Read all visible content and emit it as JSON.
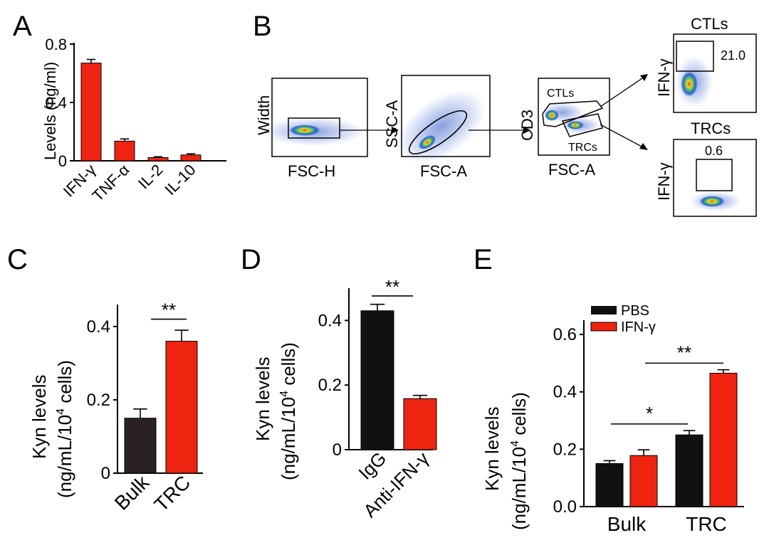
{
  "colors": {
    "red": "#ee2411",
    "black": "#111111",
    "dark": "#2a2222"
  },
  "chart_data": [
    {
      "panel": "A",
      "type": "bar",
      "ylabel": "Levels (ng/ml)",
      "categories": [
        "IFN-γ",
        "TNF-α",
        "IL-2",
        "IL-10"
      ],
      "values": [
        0.67,
        0.135,
        0.022,
        0.04
      ],
      "errors": [
        0.025,
        0.015,
        0.006,
        0.008
      ],
      "yticks": [
        "0",
        "0.4",
        "0.8"
      ],
      "ylim": [
        0,
        0.8
      ]
    },
    {
      "panel": "B",
      "type": "scatter",
      "plots": [
        {
          "x_label": "FSC-H",
          "y_label": "Width"
        },
        {
          "x_label": "FSC-A",
          "y_label": "SSC-A"
        },
        {
          "x_label": "FSC-A",
          "y_label": "CD3",
          "gates": [
            "CTLs",
            "TRCs"
          ]
        },
        {
          "title": "CTLs",
          "y_label": "IFN-γ",
          "gate_value": "21.0"
        },
        {
          "title": "TRCs",
          "y_label": "IFN-γ",
          "gate_value": "0.6"
        }
      ]
    },
    {
      "panel": "C",
      "type": "bar",
      "ylabel_line1": "Kyn levels",
      "ylabel_line2": "(ng/mL/10",
      "ylabel_sup": "4",
      "ylabel_line3": " cells)",
      "categories": [
        "Bulk",
        "TRC"
      ],
      "values": [
        0.15,
        0.36
      ],
      "errors": [
        0.025,
        0.03
      ],
      "yticks": [
        "0",
        "0.2",
        "0.4"
      ],
      "ylim": [
        0,
        0.46
      ],
      "significance": "**"
    },
    {
      "panel": "D",
      "type": "bar",
      "ylabel_line1": "Kyn levels",
      "ylabel_line2": "(ng/mL/10",
      "ylabel_sup": "4",
      "ylabel_line3": " cells)",
      "categories": [
        "IgG",
        "Anti-IFN-γ"
      ],
      "values": [
        0.43,
        0.158
      ],
      "errors": [
        0.02,
        0.01
      ],
      "yticks": [
        "0",
        "0.2",
        "0.4"
      ],
      "ylim": [
        0,
        0.5
      ],
      "significance": "**"
    },
    {
      "panel": "E",
      "type": "bar",
      "ylabel_line1": "Kyn levels",
      "ylabel_line2": "(ng/mL/10",
      "ylabel_sup": "4",
      "ylabel_line3": " cells)",
      "categories": [
        "Bulk",
        "TRC"
      ],
      "series": [
        {
          "name": "PBS",
          "values": [
            0.15,
            0.25
          ],
          "errors": [
            0.01,
            0.015
          ]
        },
        {
          "name": "IFN-γ",
          "values": [
            0.178,
            0.465
          ],
          "errors": [
            0.02,
            0.012
          ]
        }
      ],
      "yticks": [
        "0.0",
        "0.2",
        "0.4",
        "0.6"
      ],
      "ylim": [
        0,
        0.62
      ],
      "significance": [
        "*",
        "**"
      ]
    }
  ]
}
